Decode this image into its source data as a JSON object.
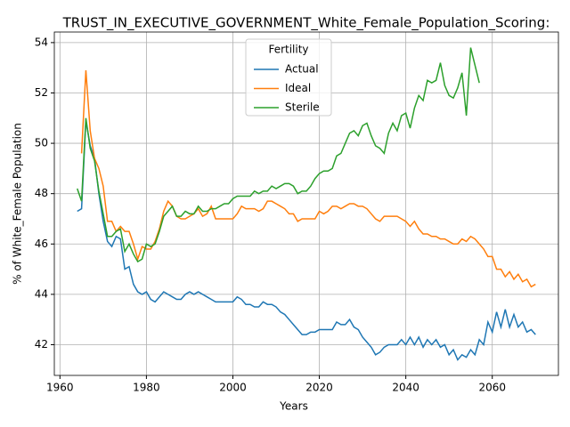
{
  "chart_data": {
    "type": "line",
    "title": "TRUST_IN_EXECUTIVE_GOVERNMENT_White_Female_Population_Scoring:",
    "xlabel": "Years",
    "ylabel": "% of White_Female Population",
    "legend_title": "Fertility",
    "legend": "upper center",
    "grid": true,
    "xlim": [
      1958.7,
      2075.3
    ],
    "ylim": [
      40.78,
      54.42
    ],
    "xticks": [
      1960,
      1980,
      2000,
      2020,
      2040,
      2060
    ],
    "yticks": [
      42,
      44,
      46,
      48,
      50,
      52,
      54
    ],
    "x": [
      1964,
      1965,
      1966,
      1967,
      1968,
      1969,
      1970,
      1971,
      1972,
      1973,
      1974,
      1975,
      1976,
      1977,
      1978,
      1979,
      1980,
      1981,
      1982,
      1983,
      1984,
      1985,
      1986,
      1987,
      1988,
      1989,
      1990,
      1991,
      1992,
      1993,
      1994,
      1995,
      1996,
      1997,
      1998,
      1999,
      2000,
      2001,
      2002,
      2003,
      2004,
      2005,
      2006,
      2007,
      2008,
      2009,
      2010,
      2011,
      2012,
      2013,
      2014,
      2015,
      2016,
      2017,
      2018,
      2019,
      2020,
      2021,
      2022,
      2023,
      2024,
      2025,
      2026,
      2027,
      2028,
      2029,
      2030,
      2031,
      2032,
      2033,
      2034,
      2035,
      2036,
      2037,
      2038,
      2039,
      2040,
      2041,
      2042,
      2043,
      2044,
      2045,
      2046,
      2047,
      2048,
      2049,
      2050,
      2051,
      2052,
      2053,
      2054,
      2055,
      2056,
      2057,
      2058,
      2059,
      2060,
      2061,
      2062,
      2063,
      2064,
      2065,
      2066,
      2067,
      2068,
      2069,
      2070
    ],
    "series": [
      {
        "name": "Actual",
        "color": "#1f77b4",
        "values": [
          47.3,
          47.4,
          50.9,
          49.9,
          49.4,
          48.0,
          46.9,
          46.1,
          45.9,
          46.3,
          46.2,
          45.0,
          45.1,
          44.4,
          44.1,
          44.0,
          44.1,
          43.8,
          43.7,
          43.9,
          44.1,
          44.0,
          43.9,
          43.8,
          43.8,
          44.0,
          44.1,
          44.0,
          44.1,
          44.0,
          43.9,
          43.8,
          43.7,
          43.7,
          43.7,
          43.7,
          43.7,
          43.9,
          43.8,
          43.6,
          43.6,
          43.5,
          43.5,
          43.7,
          43.6,
          43.6,
          43.5,
          43.3,
          43.2,
          43.0,
          42.8,
          42.6,
          42.4,
          42.4,
          42.5,
          42.5,
          42.6,
          42.6,
          42.6,
          42.6,
          42.9,
          42.8,
          42.8,
          43.0,
          42.7,
          42.6,
          42.3,
          42.1,
          41.9,
          41.6,
          41.7,
          41.9,
          42.0,
          42.0,
          42.0,
          42.2,
          42.0,
          42.3,
          42.0,
          42.3,
          41.9,
          42.2,
          42.0,
          42.2,
          41.9,
          42.0,
          41.6,
          41.8,
          41.4,
          41.6,
          41.5,
          41.8,
          41.6,
          42.2,
          42.0,
          42.9,
          42.5,
          43.3,
          42.7,
          43.4,
          42.7,
          43.2,
          42.7,
          42.9,
          42.5,
          42.6,
          42.4
        ]
      },
      {
        "name": "Ideal",
        "color": "#ff7f0e",
        "values": [
          null,
          49.6,
          52.9,
          50.5,
          49.4,
          49.0,
          48.3,
          46.9,
          46.9,
          46.5,
          46.7,
          46.5,
          46.5,
          46.0,
          45.4,
          45.9,
          45.8,
          45.8,
          46.1,
          46.6,
          47.3,
          47.7,
          47.5,
          47.1,
          47.0,
          47.0,
          47.1,
          47.2,
          47.4,
          47.1,
          47.2,
          47.5,
          47.0,
          47.0,
          47.0,
          47.0,
          47.0,
          47.2,
          47.5,
          47.4,
          47.4,
          47.4,
          47.3,
          47.4,
          47.7,
          47.7,
          47.6,
          47.5,
          47.4,
          47.2,
          47.2,
          46.9,
          47.0,
          47.0,
          47.0,
          47.0,
          47.3,
          47.2,
          47.3,
          47.5,
          47.5,
          47.4,
          47.5,
          47.6,
          47.6,
          47.5,
          47.5,
          47.4,
          47.2,
          47.0,
          46.9,
          47.1,
          47.1,
          47.1,
          47.1,
          47.0,
          46.9,
          46.7,
          46.9,
          46.6,
          46.4,
          46.4,
          46.3,
          46.3,
          46.2,
          46.2,
          46.1,
          46.0,
          46.0,
          46.2,
          46.1,
          46.3,
          46.2,
          46.0,
          45.8,
          45.5,
          45.5,
          45.0,
          45.0,
          44.7,
          44.9,
          44.6,
          44.8,
          44.5,
          44.6,
          44.3,
          44.4
        ]
      },
      {
        "name": "Sterile",
        "color": "#2ca02c",
        "values": [
          48.2,
          47.7,
          51.0,
          49.8,
          49.3,
          48.1,
          47.2,
          46.3,
          46.3,
          46.5,
          46.6,
          45.7,
          46.0,
          45.6,
          45.3,
          45.4,
          46.0,
          45.9,
          46.0,
          46.5,
          47.1,
          47.3,
          47.5,
          47.1,
          47.1,
          47.3,
          47.2,
          47.2,
          47.5,
          47.3,
          47.3,
          47.4,
          47.4,
          47.5,
          47.6,
          47.6,
          47.8,
          47.9,
          47.9,
          47.9,
          47.9,
          48.1,
          48.0,
          48.1,
          48.1,
          48.3,
          48.2,
          48.3,
          48.4,
          48.4,
          48.3,
          48.0,
          48.1,
          48.1,
          48.3,
          48.6,
          48.8,
          48.9,
          48.9,
          49.0,
          49.5,
          49.6,
          50.0,
          50.4,
          50.5,
          50.3,
          50.7,
          50.8,
          50.3,
          49.9,
          49.8,
          49.6,
          50.4,
          50.8,
          50.5,
          51.1,
          51.2,
          50.6,
          51.4,
          51.9,
          51.7,
          52.5,
          52.4,
          52.5,
          53.2,
          52.3,
          51.9,
          51.8,
          52.2,
          52.8,
          51.1,
          53.8,
          53.1,
          52.4,
          null,
          null,
          null,
          null,
          null,
          null,
          null,
          null,
          null,
          null,
          null,
          null,
          null
        ]
      }
    ]
  }
}
